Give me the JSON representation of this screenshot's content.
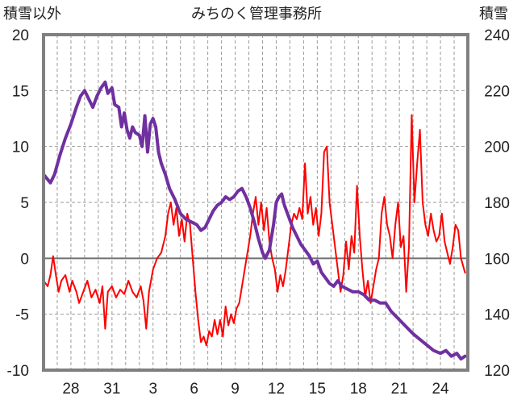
{
  "chart_data": {
    "type": "line",
    "title": "みちのく管理事務所",
    "y_left_label": "積雪以外",
    "y_right_label": "積雪",
    "y_left_ticks": [
      "20",
      "15",
      "10",
      "5",
      "0",
      "-5",
      "-10"
    ],
    "y_right_ticks": [
      "240",
      "220",
      "200",
      "180",
      "160",
      "140",
      "120"
    ],
    "x_tick_labels": [
      "28",
      "31",
      "3",
      "6",
      "9",
      "12",
      "15",
      "18",
      "21",
      "24"
    ],
    "ylim_left": [
      -10,
      20
    ],
    "ylim_right": [
      120,
      240
    ],
    "xlim": [
      26,
      57
    ],
    "x_tick_positions": [
      28,
      31,
      34,
      37,
      40,
      43,
      46,
      49,
      52,
      55
    ],
    "zero_line": 0,
    "grid": "dashed",
    "series": [
      {
        "axis": "left",
        "color": "#ff0000",
        "points": [
          [
            26.0,
            -2.0
          ],
          [
            26.3,
            -2.5
          ],
          [
            26.5,
            -1.5
          ],
          [
            26.7,
            0.2
          ],
          [
            26.9,
            -1.5
          ],
          [
            27.1,
            -3.0
          ],
          [
            27.3,
            -2.0
          ],
          [
            27.6,
            -1.5
          ],
          [
            27.9,
            -3.0
          ],
          [
            28.1,
            -2.0
          ],
          [
            28.4,
            -3.0
          ],
          [
            28.6,
            -4.0
          ],
          [
            28.9,
            -3.0
          ],
          [
            29.2,
            -2.0
          ],
          [
            29.5,
            -3.5
          ],
          [
            29.8,
            -2.8
          ],
          [
            30.1,
            -4.0
          ],
          [
            30.3,
            -2.5
          ],
          [
            30.5,
            -6.3
          ],
          [
            30.7,
            -3.0
          ],
          [
            31.0,
            -2.5
          ],
          [
            31.3,
            -3.5
          ],
          [
            31.6,
            -2.8
          ],
          [
            31.9,
            -3.2
          ],
          [
            32.2,
            -2.0
          ],
          [
            32.5,
            -3.0
          ],
          [
            32.8,
            -3.5
          ],
          [
            33.1,
            -2.5
          ],
          [
            33.3,
            -3.8
          ],
          [
            33.5,
            -6.3
          ],
          [
            33.7,
            -3.0
          ],
          [
            34.0,
            -1.0
          ],
          [
            34.3,
            0.0
          ],
          [
            34.6,
            0.5
          ],
          [
            34.9,
            2.0
          ],
          [
            35.1,
            4.0
          ],
          [
            35.3,
            5.0
          ],
          [
            35.5,
            3.0
          ],
          [
            35.7,
            4.5
          ],
          [
            35.9,
            2.0
          ],
          [
            36.1,
            3.5
          ],
          [
            36.3,
            1.5
          ],
          [
            36.5,
            4.0
          ],
          [
            36.7,
            3.0
          ],
          [
            36.9,
            0.0
          ],
          [
            37.1,
            -3.0
          ],
          [
            37.3,
            -5.5
          ],
          [
            37.5,
            -7.5
          ],
          [
            37.7,
            -7.0
          ],
          [
            37.9,
            -7.8
          ],
          [
            38.1,
            -6.5
          ],
          [
            38.3,
            -7.0
          ],
          [
            38.5,
            -5.5
          ],
          [
            38.7,
            -6.8
          ],
          [
            38.9,
            -5.5
          ],
          [
            39.1,
            -7.0
          ],
          [
            39.3,
            -4.3
          ],
          [
            39.5,
            -6.0
          ],
          [
            39.7,
            -5.0
          ],
          [
            39.9,
            -5.8
          ],
          [
            40.1,
            -4.5
          ],
          [
            40.3,
            -4.0
          ],
          [
            40.5,
            -2.5
          ],
          [
            40.7,
            -1.0
          ],
          [
            40.9,
            0.5
          ],
          [
            41.1,
            2.0
          ],
          [
            41.3,
            4.0
          ],
          [
            41.5,
            5.5
          ],
          [
            41.7,
            3.0
          ],
          [
            41.9,
            5.0
          ],
          [
            42.1,
            2.5
          ],
          [
            42.3,
            4.5
          ],
          [
            42.5,
            1.5
          ],
          [
            42.7,
            0.0
          ],
          [
            42.9,
            -1.0
          ],
          [
            43.1,
            -3.0
          ],
          [
            43.3,
            -1.5
          ],
          [
            43.5,
            -2.5
          ],
          [
            43.7,
            -1.0
          ],
          [
            43.9,
            1.0
          ],
          [
            44.1,
            3.0
          ],
          [
            44.3,
            4.0
          ],
          [
            44.5,
            3.5
          ],
          [
            44.7,
            4.5
          ],
          [
            44.9,
            3.5
          ],
          [
            45.1,
            8.5
          ],
          [
            45.3,
            4.0
          ],
          [
            45.5,
            5.5
          ],
          [
            45.7,
            3.0
          ],
          [
            45.9,
            4.5
          ],
          [
            46.1,
            2.0
          ],
          [
            46.3,
            4.0
          ],
          [
            46.5,
            9.5
          ],
          [
            46.7,
            10.0
          ],
          [
            46.9,
            5.0
          ],
          [
            47.1,
            3.0
          ],
          [
            47.3,
            1.0
          ],
          [
            47.5,
            -1.0
          ],
          [
            47.7,
            -3.0
          ],
          [
            47.9,
            -1.5
          ],
          [
            48.1,
            1.5
          ],
          [
            48.3,
            -1.0
          ],
          [
            48.5,
            2.0
          ],
          [
            48.7,
            0.5
          ],
          [
            48.9,
            6.5
          ],
          [
            49.1,
            2.0
          ],
          [
            49.3,
            -1.0
          ],
          [
            49.5,
            -3.5
          ],
          [
            49.7,
            -2.0
          ],
          [
            49.9,
            -4.0
          ],
          [
            50.1,
            -2.5
          ],
          [
            50.3,
            -1.0
          ],
          [
            50.5,
            0.0
          ],
          [
            50.7,
            4.0
          ],
          [
            50.9,
            5.5
          ],
          [
            51.1,
            3.0
          ],
          [
            51.3,
            2.0
          ],
          [
            51.5,
            0.0
          ],
          [
            51.7,
            3.0
          ],
          [
            51.9,
            5.0
          ],
          [
            52.1,
            1.0
          ],
          [
            52.3,
            2.0
          ],
          [
            52.5,
            -3.0
          ],
          [
            52.7,
            1.0
          ],
          [
            52.9,
            12.8
          ],
          [
            53.1,
            5.0
          ],
          [
            53.3,
            8.5
          ],
          [
            53.5,
            11.5
          ],
          [
            53.7,
            5.0
          ],
          [
            53.9,
            3.0
          ],
          [
            54.1,
            2.0
          ],
          [
            54.3,
            4.0
          ],
          [
            54.5,
            2.5
          ],
          [
            54.7,
            1.5
          ],
          [
            54.9,
            2.0
          ],
          [
            55.1,
            4.0
          ],
          [
            55.3,
            1.5
          ],
          [
            55.5,
            0.5
          ],
          [
            55.7,
            -0.5
          ],
          [
            55.9,
            1.0
          ],
          [
            56.1,
            3.0
          ],
          [
            56.3,
            2.5
          ],
          [
            56.5,
            0.0
          ],
          [
            56.8,
            -1.3
          ]
        ]
      },
      {
        "axis": "right",
        "color": "#7030a0",
        "points": [
          [
            26.0,
            190.0
          ],
          [
            26.5,
            187.0
          ],
          [
            26.8,
            190.0
          ],
          [
            27.2,
            197.0
          ],
          [
            27.6,
            203.0
          ],
          [
            28.0,
            208.0
          ],
          [
            28.4,
            214.0
          ],
          [
            28.7,
            218.0
          ],
          [
            29.0,
            220.0
          ],
          [
            29.3,
            217.0
          ],
          [
            29.6,
            214.0
          ],
          [
            29.9,
            218.0
          ],
          [
            30.2,
            221.0
          ],
          [
            30.5,
            223.0
          ],
          [
            30.7,
            219.0
          ],
          [
            31.0,
            221.0
          ],
          [
            31.2,
            215.0
          ],
          [
            31.5,
            214.0
          ],
          [
            31.7,
            207.0
          ],
          [
            31.9,
            212.0
          ],
          [
            32.1,
            206.0
          ],
          [
            32.3,
            203.0
          ],
          [
            32.5,
            207.0
          ],
          [
            32.7,
            205.0
          ],
          [
            33.0,
            204.0
          ],
          [
            33.2,
            200.0
          ],
          [
            33.4,
            211.0
          ],
          [
            33.6,
            198.0
          ],
          [
            33.8,
            208.0
          ],
          [
            34.0,
            210.0
          ],
          [
            34.2,
            207.0
          ],
          [
            34.4,
            198.0
          ],
          [
            34.6,
            194.0
          ],
          [
            34.9,
            190.0
          ],
          [
            35.2,
            185.0
          ],
          [
            35.6,
            181.0
          ],
          [
            36.0,
            176.0
          ],
          [
            36.4,
            174.0
          ],
          [
            36.8,
            173.0
          ],
          [
            37.2,
            172.0
          ],
          [
            37.5,
            170.0
          ],
          [
            37.8,
            171.0
          ],
          [
            38.1,
            174.0
          ],
          [
            38.4,
            177.0
          ],
          [
            38.7,
            179.0
          ],
          [
            39.0,
            180.0
          ],
          [
            39.3,
            182.0
          ],
          [
            39.6,
            181.0
          ],
          [
            39.9,
            182.0
          ],
          [
            40.2,
            184.0
          ],
          [
            40.5,
            185.0
          ],
          [
            40.8,
            182.0
          ],
          [
            41.1,
            178.0
          ],
          [
            41.4,
            173.0
          ],
          [
            41.7,
            167.0
          ],
          [
            42.0,
            162.0
          ],
          [
            42.2,
            160.0
          ],
          [
            42.5,
            163.0
          ],
          [
            42.8,
            172.0
          ],
          [
            43.0,
            180.0
          ],
          [
            43.2,
            182.0
          ],
          [
            43.4,
            183.0
          ],
          [
            43.6,
            179.0
          ],
          [
            43.9,
            175.0
          ],
          [
            44.2,
            171.0
          ],
          [
            44.5,
            168.0
          ],
          [
            44.8,
            165.0
          ],
          [
            45.1,
            163.0
          ],
          [
            45.4,
            161.0
          ],
          [
            45.7,
            158.0
          ],
          [
            46.0,
            159.0
          ],
          [
            46.3,
            155.0
          ],
          [
            46.6,
            153.0
          ],
          [
            46.9,
            151.0
          ],
          [
            47.2,
            150.0
          ],
          [
            47.5,
            152.0
          ],
          [
            47.8,
            150.0
          ],
          [
            48.2,
            149.0
          ],
          [
            48.6,
            148.0
          ],
          [
            49.0,
            148.0
          ],
          [
            49.4,
            147.0
          ],
          [
            49.8,
            145.0
          ],
          [
            50.2,
            145.0
          ],
          [
            50.6,
            144.0
          ],
          [
            51.0,
            144.0
          ],
          [
            51.4,
            141.0
          ],
          [
            51.8,
            139.0
          ],
          [
            52.2,
            137.0
          ],
          [
            52.6,
            135.0
          ],
          [
            53.0,
            133.0
          ],
          [
            53.5,
            131.0
          ],
          [
            54.0,
            129.0
          ],
          [
            54.5,
            127.0
          ],
          [
            55.0,
            126.0
          ],
          [
            55.4,
            127.0
          ],
          [
            55.8,
            125.0
          ],
          [
            56.2,
            126.0
          ],
          [
            56.5,
            124.0
          ],
          [
            56.8,
            125.0
          ]
        ]
      }
    ]
  }
}
